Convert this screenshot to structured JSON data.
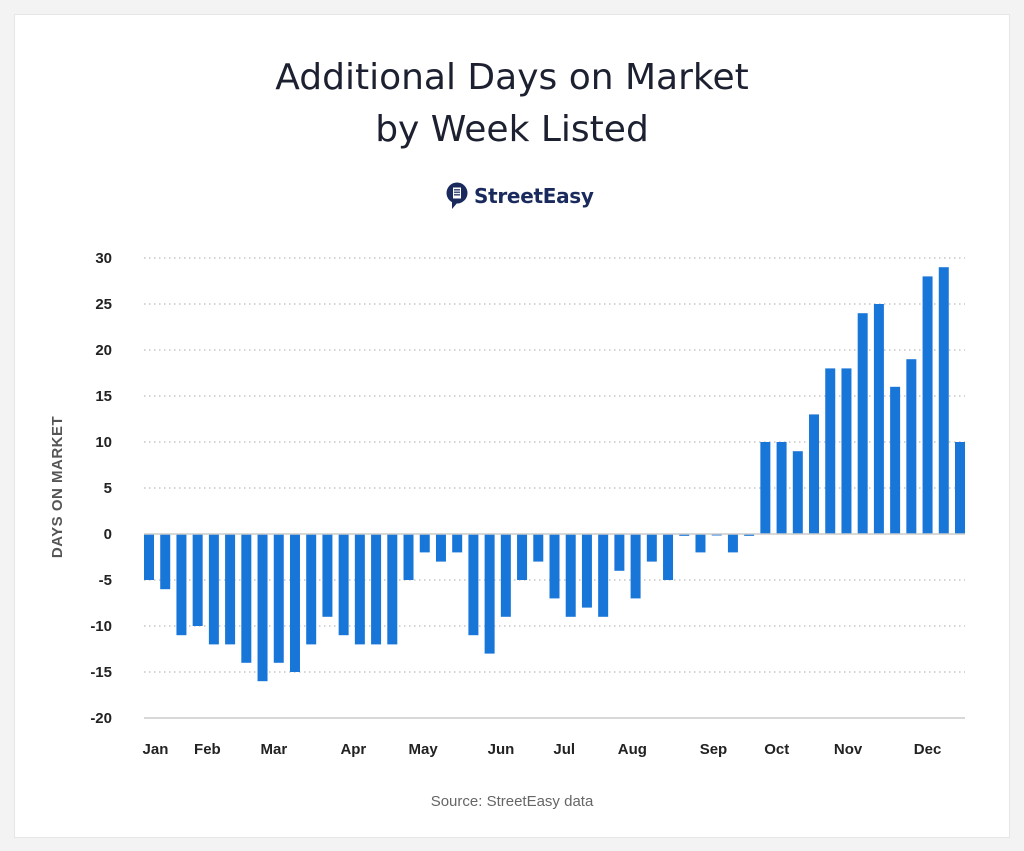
{
  "chart_data": {
    "type": "bar",
    "title": "Additional Days on Market by Week Listed",
    "title_lines": [
      "Additional Days on Market",
      "by Week Listed"
    ],
    "logo": "StreetEasy",
    "source": "Source: StreetEasy data",
    "ylabel": "DAYS ON MARKET",
    "xlabel": "",
    "ylim": [
      -20,
      30
    ],
    "yticks": [
      30,
      25,
      20,
      15,
      10,
      5,
      0,
      -5,
      -10,
      -15,
      -20
    ],
    "month_labels": [
      "Jan",
      "Feb",
      "Mar",
      "Apr",
      "May",
      "Jun",
      "Jul",
      "Aug",
      "Sep",
      "Oct",
      "Nov",
      "Dec"
    ],
    "grid": true,
    "bar_color": "#1976d9",
    "values": [
      -5,
      -6,
      -11,
      -10,
      -12,
      -12,
      -14,
      -16,
      -14,
      -15,
      -12,
      -9,
      -11,
      -12,
      -12,
      -12,
      -5,
      -2,
      -3,
      -2,
      -11,
      -13,
      -9,
      -5,
      -3,
      -7,
      -9,
      -8,
      -9,
      -4,
      -7,
      -3,
      -5,
      -0.2,
      -2,
      -0.1,
      -2,
      -0.2,
      10,
      10,
      9,
      13,
      18,
      18,
      24,
      25,
      16,
      19,
      28,
      29,
      10
    ]
  }
}
